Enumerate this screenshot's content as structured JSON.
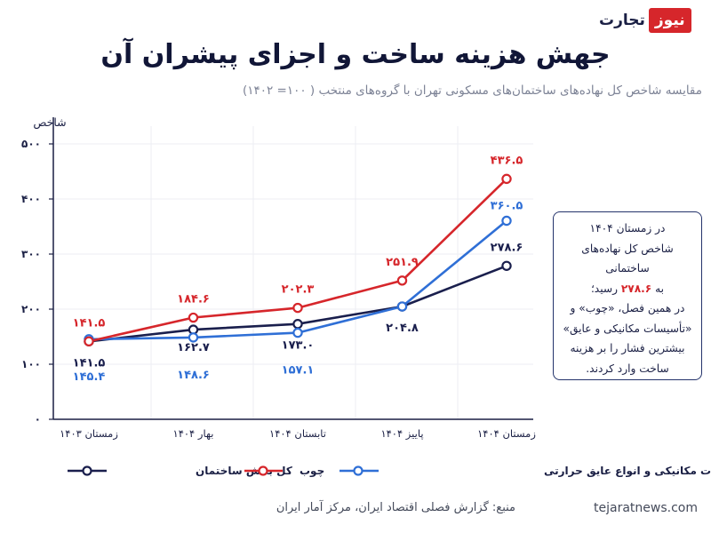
{
  "brand": {
    "part_a": "نیوز",
    "part_b": "تجارت"
  },
  "title": "جهش هزینه ساخت و اجزای پیشران آن",
  "subtitle": "مقایسه شاخص کل نهاده‌های ساختمان‌های مسکونی تهران با گروه‌های منتخب ( ۱۰۰= ۱۴۰۲)",
  "chart_data": {
    "type": "line",
    "ylabel": "شاخص",
    "ylim": [
      0,
      500
    ],
    "yticks": [
      0,
      100,
      200,
      300,
      400,
      500
    ],
    "ytick_labels": [
      "۰",
      "۱۰۰",
      "۲۰۰",
      "۳۰۰",
      "۴۰۰",
      "۵۰۰"
    ],
    "categories": [
      "زمستان ۱۴۰۳",
      "بهار ۱۴۰۴",
      "تابستان ۱۴۰۴",
      "پاییز ۱۴۰۴",
      "زمستان ۱۴۰۴"
    ],
    "grid": true,
    "legend_position": "bottom",
    "series": [
      {
        "name": "کل بخش ساختمان",
        "color": "#1a1f4d",
        "values": [
          141.5,
          162.7,
          173.0,
          204.8,
          278.6
        ],
        "labels": [
          "۱۴۱.۵",
          "۱۶۲.۷",
          "۱۷۳.۰",
          "۲۰۴.۸",
          "۲۷۸.۶"
        ]
      },
      {
        "name": "چوب",
        "color": "#d6262b",
        "values": [
          141.5,
          184.6,
          202.3,
          251.9,
          436.5
        ],
        "labels": [
          "۱۴۱.۵",
          "۱۸۴.۶",
          "۲۰۲.۳",
          "۲۵۱.۹",
          "۴۳۶.۵"
        ]
      },
      {
        "name": "تأسیسات مکانیکی و انواع عایق حرارتی",
        "color": "#2f6fd6",
        "values": [
          145.4,
          148.6,
          157.1,
          204.8,
          360.5
        ],
        "labels": [
          "۱۴۵.۴",
          "۱۴۸.۶",
          "۱۵۷.۱",
          "",
          "۳۶۰.۵"
        ]
      }
    ]
  },
  "infobox": {
    "line1": "در زمستان ۱۴۰۴",
    "line2": "شاخص کل نهاده‌های ساختمانی",
    "line3_pre": "به ",
    "line3_value": "۲۷۸.۶",
    "line3_post": " رسید؛",
    "line4": "در همین فصل، «چوب» و",
    "line5": "«تأسیسات مکانیکی و عایق»",
    "line6": "بیشترین فشار را بر هزینه",
    "line7": "ساخت وارد کردند."
  },
  "source": "منبع: گزارش فصلی اقتصاد ایران، مرکز آمار ایران",
  "website": "tejaratnews.com"
}
